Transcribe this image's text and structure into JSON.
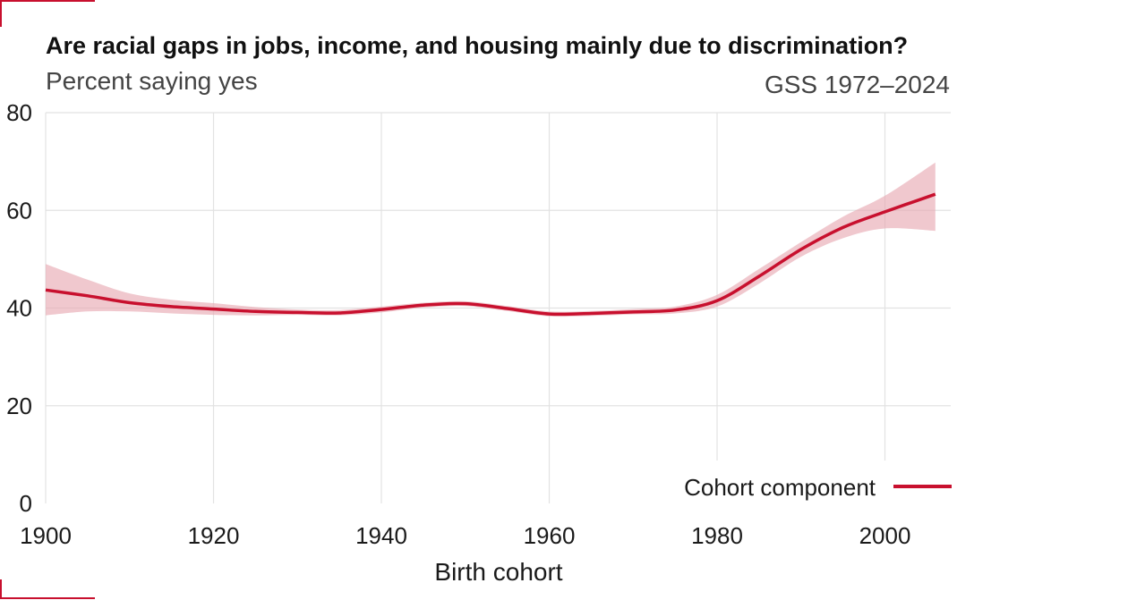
{
  "header": {
    "title": "Are racial gaps in jobs, income, and housing mainly due to discrimination?",
    "subtitle": "Percent saying yes",
    "source": "GSS 1972–2024"
  },
  "colors": {
    "accent": "#c8102e",
    "band": "#e8aab4",
    "grid": "#e2e2e2"
  },
  "chart_data": {
    "type": "line",
    "title": "Are racial gaps in jobs, income, and housing mainly due to discrimination?",
    "subtitle": "Percent saying yes",
    "xlabel": "Birth cohort",
    "ylabel": "",
    "xlim": [
      1900,
      2006
    ],
    "ylim": [
      0,
      80
    ],
    "x_ticks": [
      1900,
      1920,
      1940,
      1960,
      1980,
      2000
    ],
    "y_ticks": [
      0,
      20,
      40,
      60,
      80
    ],
    "grid": true,
    "legend_position": "bottom-right",
    "series": [
      {
        "name": "Cohort component",
        "x": [
          1900,
          1905,
          1910,
          1915,
          1920,
          1925,
          1930,
          1935,
          1940,
          1945,
          1950,
          1955,
          1960,
          1965,
          1970,
          1975,
          1980,
          1985,
          1990,
          1995,
          2000,
          2006
        ],
        "y": [
          43.7,
          42.5,
          41.1,
          40.3,
          39.8,
          39.3,
          39.1,
          39.0,
          39.7,
          40.6,
          40.9,
          39.9,
          38.8,
          38.9,
          39.2,
          39.6,
          41.5,
          46.5,
          52.0,
          56.5,
          59.7,
          63.3
        ],
        "lower": [
          38.5,
          39.3,
          39.3,
          38.9,
          38.6,
          38.5,
          38.6,
          38.5,
          39.1,
          40.1,
          40.4,
          39.4,
          38.3,
          38.4,
          38.7,
          38.9,
          40.3,
          45.0,
          50.5,
          54.3,
          56.3,
          55.8
        ],
        "upper": [
          49.0,
          45.8,
          43.0,
          41.7,
          41.0,
          40.2,
          39.7,
          39.6,
          40.3,
          41.1,
          41.4,
          40.4,
          39.3,
          39.4,
          39.8,
          40.3,
          42.7,
          48.0,
          53.5,
          58.7,
          63.0,
          69.8
        ]
      }
    ]
  }
}
